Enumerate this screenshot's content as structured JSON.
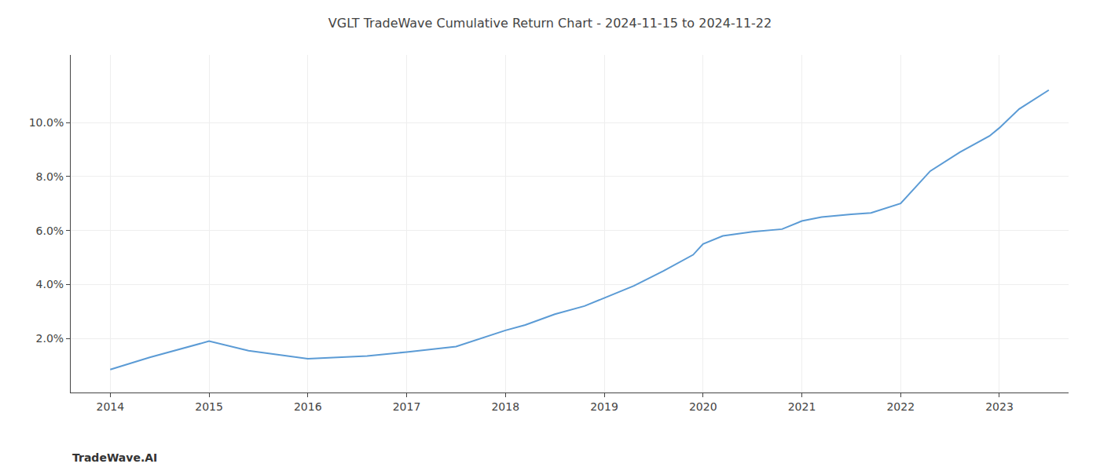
{
  "chart_data": {
    "type": "line",
    "title": "VGLT TradeWave Cumulative Return Chart - 2024-11-15 to 2024-11-22",
    "annotations": [
      "TradeWave.AI"
    ],
    "x": [
      2014.0,
      2014.4,
      2015.0,
      2015.4,
      2016.0,
      2016.3,
      2016.6,
      2017.0,
      2017.5,
      2018.0,
      2018.2,
      2018.5,
      2018.8,
      2019.0,
      2019.3,
      2019.6,
      2019.9,
      2020.0,
      2020.2,
      2020.5,
      2020.8,
      2021.0,
      2021.2,
      2021.5,
      2021.7,
      2022.0,
      2022.3,
      2022.6,
      2022.9,
      2023.0,
      2023.2,
      2023.5
    ],
    "values": [
      0.85,
      1.3,
      1.9,
      1.55,
      1.25,
      1.3,
      1.35,
      1.5,
      1.7,
      2.3,
      2.5,
      2.9,
      3.2,
      3.5,
      3.95,
      4.5,
      5.1,
      5.5,
      5.8,
      5.95,
      6.05,
      6.35,
      6.5,
      6.6,
      6.65,
      7.0,
      8.2,
      8.9,
      9.5,
      9.8,
      10.5,
      11.2
    ],
    "color": "#5b9bd5",
    "xlim": [
      2013.6,
      2023.7
    ],
    "ylim": [
      0,
      12.5
    ],
    "xticks": [
      2014,
      2015,
      2016,
      2017,
      2018,
      2019,
      2020,
      2021,
      2022,
      2023
    ],
    "yticks": [
      {
        "value": 2.0,
        "label": "2.0%"
      },
      {
        "value": 4.0,
        "label": "4.0%"
      },
      {
        "value": 6.0,
        "label": "6.0%"
      },
      {
        "value": 8.0,
        "label": "8.0%"
      },
      {
        "value": 10.0,
        "label": "10.0%"
      }
    ],
    "grid": true
  }
}
